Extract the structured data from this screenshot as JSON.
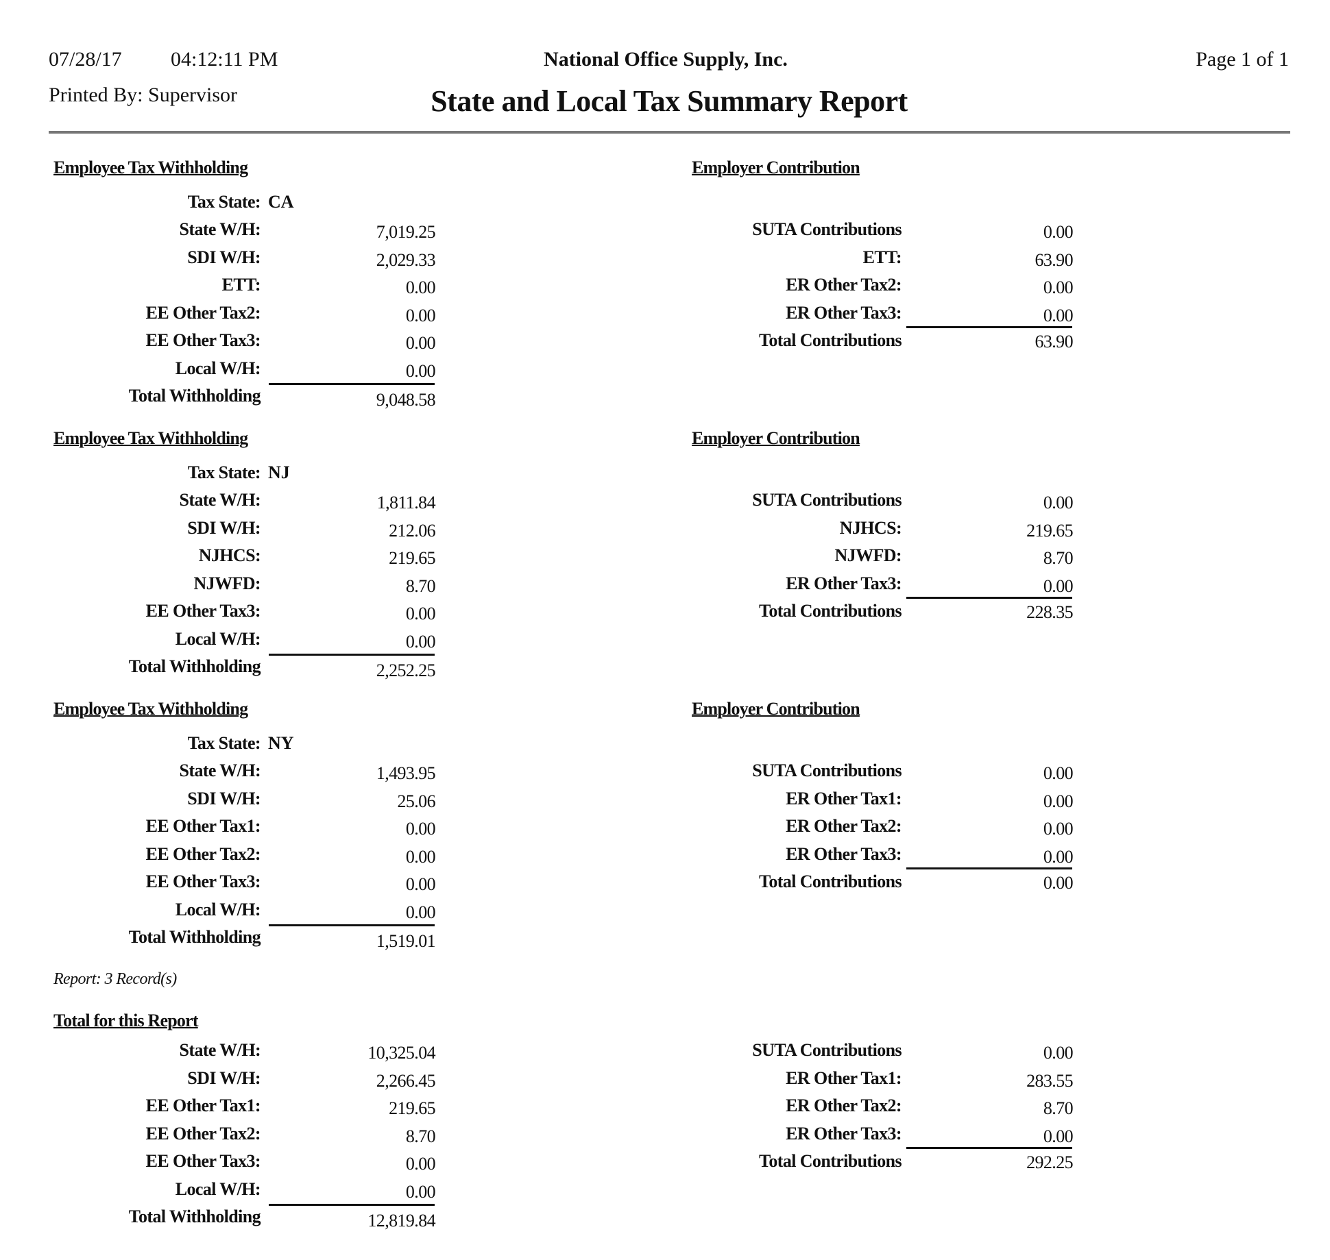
{
  "header": {
    "date": "07/28/17",
    "time": "04:12:11 PM",
    "company": "National Office Supply, Inc.",
    "page": "Page 1 of 1",
    "printed_by": "Printed By: Supervisor",
    "title": "State and Local Tax Summary Report"
  },
  "sections": [
    {
      "left_heading": "Employee Tax Withholding",
      "right_heading": "Employer Contribution",
      "tax_state_label": "Tax State:",
      "tax_state": "CA",
      "left_rows": [
        {
          "label": "State W/H:",
          "value": "7,019.25"
        },
        {
          "label": "SDI W/H:",
          "value": "2,029.33"
        },
        {
          "label": "ETT:",
          "value": "0.00"
        },
        {
          "label": "EE Other Tax2:",
          "value": "0.00"
        },
        {
          "label": "EE Other Tax3:",
          "value": "0.00"
        },
        {
          "label": "Local W/H:",
          "value": "0.00"
        }
      ],
      "left_total": {
        "label": "Total Withholding",
        "value": "9,048.58"
      },
      "right_rows": [
        {
          "label": "SUTA Contributions",
          "value": "0.00"
        },
        {
          "label": "ETT:",
          "value": "63.90"
        },
        {
          "label": "ER Other Tax2:",
          "value": "0.00"
        },
        {
          "label": "ER Other Tax3:",
          "value": "0.00"
        }
      ],
      "right_total": {
        "label": "Total Contributions",
        "value": "63.90"
      }
    },
    {
      "left_heading": "Employee Tax Withholding",
      "right_heading": "Employer Contribution",
      "tax_state_label": "Tax State:",
      "tax_state": "NJ",
      "left_rows": [
        {
          "label": "State W/H:",
          "value": "1,811.84"
        },
        {
          "label": "SDI W/H:",
          "value": "212.06"
        },
        {
          "label": "NJHCS:",
          "value": "219.65"
        },
        {
          "label": "NJWFD:",
          "value": "8.70"
        },
        {
          "label": "EE Other Tax3:",
          "value": "0.00"
        },
        {
          "label": "Local W/H:",
          "value": "0.00"
        }
      ],
      "left_total": {
        "label": "Total Withholding",
        "value": "2,252.25"
      },
      "right_rows": [
        {
          "label": "SUTA Contributions",
          "value": "0.00"
        },
        {
          "label": "NJHCS:",
          "value": "219.65"
        },
        {
          "label": "NJWFD:",
          "value": "8.70"
        },
        {
          "label": "ER Other Tax3:",
          "value": "0.00"
        }
      ],
      "right_total": {
        "label": "Total Contributions",
        "value": "228.35"
      }
    },
    {
      "left_heading": "Employee Tax Withholding",
      "right_heading": "Employer Contribution",
      "tax_state_label": "Tax State:",
      "tax_state": "NY",
      "left_rows": [
        {
          "label": "State W/H:",
          "value": "1,493.95"
        },
        {
          "label": "SDI W/H:",
          "value": "25.06"
        },
        {
          "label": "EE Other Tax1:",
          "value": "0.00"
        },
        {
          "label": "EE Other Tax2:",
          "value": "0.00"
        },
        {
          "label": "EE Other Tax3:",
          "value": "0.00"
        },
        {
          "label": "Local W/H:",
          "value": "0.00"
        }
      ],
      "left_total": {
        "label": "Total Withholding",
        "value": "1,519.01"
      },
      "right_rows": [
        {
          "label": "SUTA Contributions",
          "value": "0.00"
        },
        {
          "label": "ER Other Tax1:",
          "value": "0.00"
        },
        {
          "label": "ER Other Tax2:",
          "value": "0.00"
        },
        {
          "label": "ER Other Tax3:",
          "value": "0.00"
        }
      ],
      "right_total": {
        "label": "Total Contributions",
        "value": "0.00"
      }
    }
  ],
  "record_count": "Report: 3 Record(s)",
  "report_total": {
    "heading": "Total for this Report",
    "left_rows": [
      {
        "label": "State W/H:",
        "value": "10,325.04"
      },
      {
        "label": "SDI W/H:",
        "value": "2,266.45"
      },
      {
        "label": "EE Other Tax1:",
        "value": "219.65"
      },
      {
        "label": "EE Other Tax2:",
        "value": "8.70"
      },
      {
        "label": "EE Other Tax3:",
        "value": "0.00"
      },
      {
        "label": "Local W/H:",
        "value": "0.00"
      }
    ],
    "left_total": {
      "label": "Total Withholding",
      "value": "12,819.84"
    },
    "right_rows": [
      {
        "label": "SUTA Contributions",
        "value": "0.00"
      },
      {
        "label": "ER Other Tax1:",
        "value": "283.55"
      },
      {
        "label": "ER Other Tax2:",
        "value": "8.70"
      },
      {
        "label": "ER Other Tax3:",
        "value": "0.00"
      }
    ],
    "right_total": {
      "label": "Total Contributions",
      "value": "292.25"
    }
  }
}
